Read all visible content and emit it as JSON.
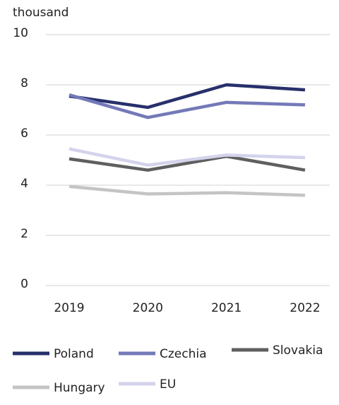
{
  "chart_data": {
    "type": "line",
    "y_axis_label": "thousand",
    "categories": [
      "2019",
      "2020",
      "2021",
      "2022"
    ],
    "series": [
      {
        "name": "Poland",
        "color": "#27306b",
        "values": [
          7.55,
          7.1,
          8.0,
          7.8
        ]
      },
      {
        "name": "Czechia",
        "color": "#7479b8",
        "values": [
          7.6,
          6.7,
          7.3,
          7.2
        ]
      },
      {
        "name": "Slovakia",
        "color": "#5f5f5f",
        "values": [
          5.05,
          4.6,
          5.15,
          4.6
        ]
      },
      {
        "name": "Hungary",
        "color": "#c4c4c4",
        "values": [
          3.95,
          3.65,
          3.7,
          3.6
        ]
      },
      {
        "name": "EU",
        "color": "#d4d3ec",
        "values": [
          5.45,
          4.8,
          5.2,
          5.1
        ]
      }
    ],
    "ylim": [
      0,
      10
    ],
    "yticks": [
      0,
      2,
      4,
      6,
      8,
      10
    ],
    "grid": true
  }
}
